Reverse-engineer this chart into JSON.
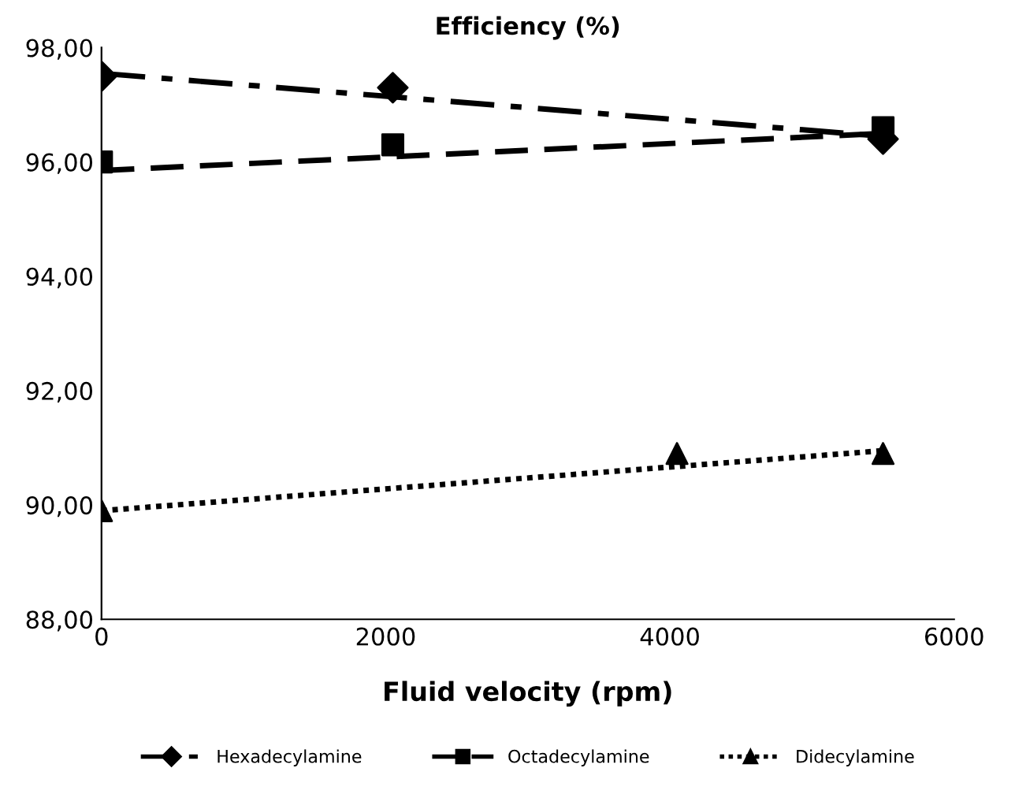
{
  "chart_data": {
    "type": "scatter",
    "title": "Efficiency (%)",
    "xlabel": "Fluid velocity (rpm)",
    "xlim": [
      0,
      6000
    ],
    "xticks": [
      0,
      2000,
      4000,
      6000
    ],
    "ylim": [
      88,
      98
    ],
    "yticks": [
      {
        "value": 88,
        "label": "88,00"
      },
      {
        "value": 90,
        "label": "90,00"
      },
      {
        "value": 92,
        "label": "92,00"
      },
      {
        "value": 94,
        "label": "94,00"
      },
      {
        "value": 96,
        "label": "96,00"
      },
      {
        "value": 98,
        "label": "98,00"
      }
    ],
    "grid": false,
    "legend": "bottom",
    "series": [
      {
        "name": "Hexadecylamine",
        "marker": "diamond",
        "color": "#000000",
        "x": [
          0,
          2050,
          5500
        ],
        "values": [
          97.5,
          97.3,
          96.4
        ]
      },
      {
        "type": "line",
        "line_style": "dashdot",
        "color": "#000000",
        "x": [
          0,
          5500
        ],
        "values": [
          97.55,
          96.45
        ]
      },
      {
        "name": "Octadecylamine",
        "marker": "square",
        "color": "#000000",
        "x": [
          0,
          2050,
          5500
        ],
        "values": [
          96.0,
          96.3,
          96.6
        ]
      },
      {
        "type": "line",
        "line_style": "dashed",
        "color": "#000000",
        "x": [
          0,
          5500
        ],
        "values": [
          95.85,
          96.5
        ]
      },
      {
        "name": "Didecylamine",
        "marker": "triangle",
        "color": "#000000",
        "x": [
          0,
          4050,
          5500
        ],
        "values": [
          89.9,
          90.9,
          90.9
        ]
      },
      {
        "type": "line",
        "line_style": "dotted",
        "color": "#000000",
        "x": [
          0,
          5500
        ],
        "values": [
          89.9,
          90.95
        ]
      }
    ]
  }
}
